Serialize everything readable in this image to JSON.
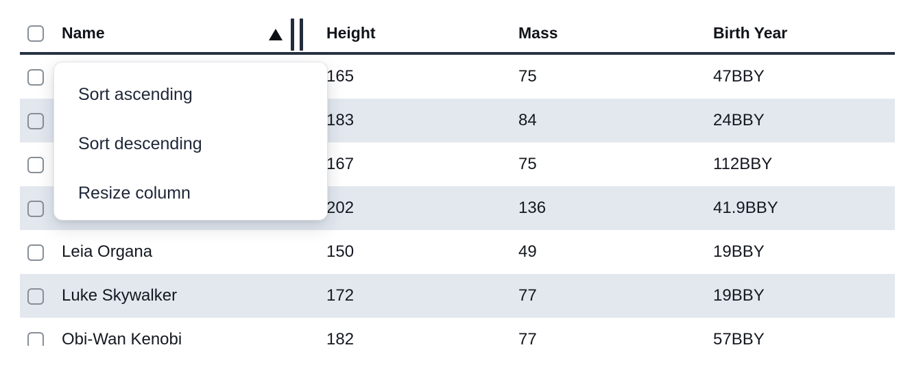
{
  "table": {
    "columns": [
      "Name",
      "Height",
      "Mass",
      "Birth Year"
    ],
    "sort": {
      "column": "Name",
      "direction": "ascending"
    },
    "rows": [
      {
        "name": "",
        "height": "165",
        "mass": "75",
        "birth_year": "47BBY"
      },
      {
        "name": "",
        "height": "183",
        "mass": "84",
        "birth_year": "24BBY"
      },
      {
        "name": "",
        "height": "167",
        "mass": "75",
        "birth_year": "112BBY"
      },
      {
        "name": "",
        "height": "202",
        "mass": "136",
        "birth_year": "41.9BBY"
      },
      {
        "name": "Leia Organa",
        "height": "150",
        "mass": "49",
        "birth_year": "19BBY"
      },
      {
        "name": "Luke Skywalker",
        "height": "172",
        "mass": "77",
        "birth_year": "19BBY"
      },
      {
        "name": "Obi-Wan Kenobi",
        "height": "182",
        "mass": "77",
        "birth_year": "57BBY"
      }
    ]
  },
  "context_menu": {
    "items": [
      "Sort ascending",
      "Sort descending",
      "Resize column"
    ]
  },
  "icons": {
    "sort_indicator": "triangle-up",
    "resize_handle": "double-vertical-bars",
    "row_selector": "checkbox-unchecked"
  },
  "colors": {
    "stripe": "#e3e8ef",
    "header_border": "#263142",
    "cell_text": "#14181f",
    "menu_text": "#1d2737",
    "checkbox_border": "#878e98"
  }
}
